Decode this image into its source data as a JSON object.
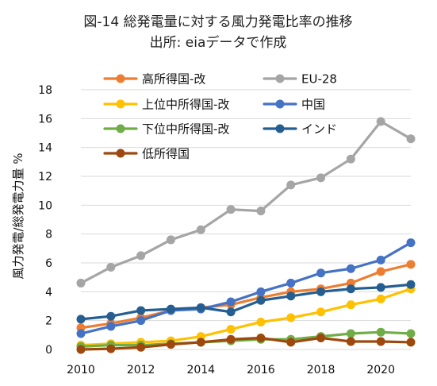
{
  "chart_data": {
    "type": "line",
    "title": "図-14 総発電量に対する風力発電比率の推移",
    "subtitle": "出所: eiaデータで作成",
    "xlabel": "",
    "ylabel": "風力発電/総発電力量 %",
    "x": [
      2010,
      2011,
      2012,
      2013,
      2014,
      2015,
      2016,
      2017,
      2018,
      2019,
      2020,
      2021
    ],
    "xticks": [
      "2010",
      "2012",
      "2014",
      "2016",
      "2018",
      "2020"
    ],
    "yticks": [
      "0",
      "2",
      "4",
      "6",
      "8",
      "10",
      "12",
      "14",
      "16",
      "18"
    ],
    "xlim": [
      2010,
      2021
    ],
    "ylim": [
      0,
      18
    ],
    "grid": true,
    "legend_position": "top",
    "series": [
      {
        "name": "高所得国-改",
        "color": "#ed7d31",
        "values": [
          1.5,
          1.8,
          2.2,
          2.7,
          2.9,
          3.1,
          3.6,
          4.0,
          4.2,
          4.6,
          5.4,
          5.9
        ]
      },
      {
        "name": "EU-28",
        "color": "#a5a5a5",
        "values": [
          4.6,
          5.7,
          6.5,
          7.6,
          8.3,
          9.7,
          9.6,
          11.4,
          11.9,
          13.2,
          15.8,
          14.6
        ]
      },
      {
        "name": "上位中所得国-改",
        "color": "#ffc000",
        "values": [
          0.3,
          0.4,
          0.5,
          0.6,
          0.9,
          1.4,
          1.9,
          2.2,
          2.6,
          3.1,
          3.5,
          4.2
        ]
      },
      {
        "name": "中国",
        "color": "#4472c4",
        "values": [
          1.1,
          1.6,
          2.0,
          2.7,
          2.8,
          3.3,
          4.0,
          4.6,
          5.3,
          5.6,
          6.2,
          7.4
        ]
      },
      {
        "name": "下位中所得国-改",
        "color": "#70ad47",
        "values": [
          0.2,
          0.3,
          0.3,
          0.4,
          0.5,
          0.6,
          0.7,
          0.7,
          0.9,
          1.1,
          1.2,
          1.1
        ]
      },
      {
        "name": "インド",
        "color": "#255e91",
        "values": [
          2.1,
          2.3,
          2.7,
          2.8,
          2.9,
          2.6,
          3.4,
          3.7,
          4.0,
          4.2,
          4.3,
          4.5
        ]
      },
      {
        "name": "低所得国",
        "color": "#9e480e",
        "values": [
          0.0,
          0.05,
          0.15,
          0.35,
          0.5,
          0.7,
          0.8,
          0.5,
          0.8,
          0.55,
          0.55,
          0.5
        ]
      }
    ]
  }
}
